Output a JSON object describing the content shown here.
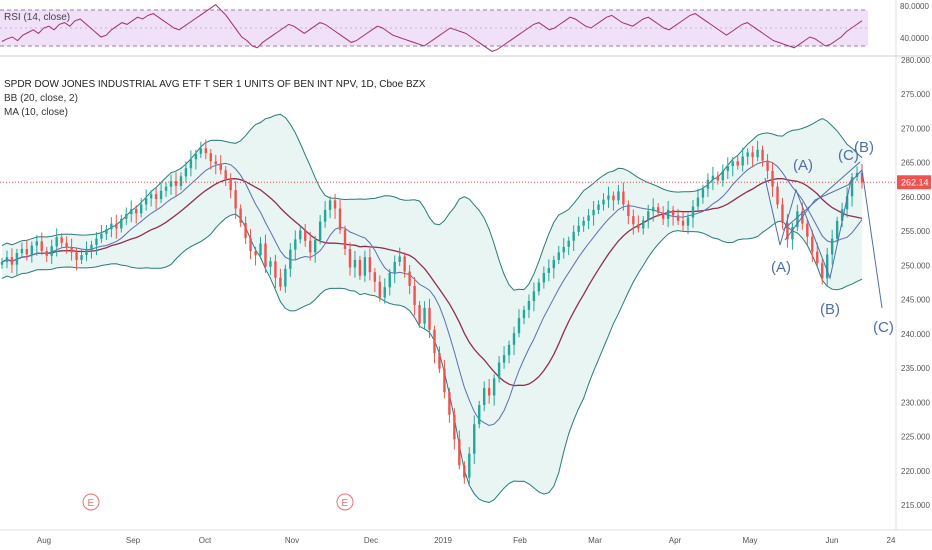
{
  "rsi": {
    "label": "RSI (14, close)",
    "ticks": [
      "80.0000",
      "40.0000"
    ],
    "upper": 80,
    "lower": 40,
    "mid": 60,
    "values": [
      45,
      48,
      50,
      46,
      52,
      55,
      58,
      54,
      60,
      62,
      58,
      64,
      66,
      62,
      68,
      70,
      65,
      60,
      55,
      50,
      52,
      58,
      62,
      66,
      64,
      68,
      72,
      70,
      74,
      76,
      72,
      68,
      64,
      60,
      58,
      62,
      66,
      70,
      74,
      78,
      82,
      86,
      80,
      74,
      66,
      58,
      50,
      46,
      40,
      38,
      44,
      48,
      52,
      56,
      60,
      64,
      62,
      58,
      54,
      58,
      62,
      66,
      64,
      60,
      56,
      52,
      48,
      44,
      46,
      50,
      54,
      58,
      62,
      60,
      56,
      52,
      50,
      48,
      46,
      44,
      42,
      40,
      44,
      48,
      52,
      56,
      60,
      58,
      56,
      54,
      50,
      46,
      42,
      38,
      34,
      36,
      40,
      44,
      48,
      52,
      56,
      60,
      64,
      66,
      62,
      58,
      60,
      64,
      68,
      72,
      70,
      66,
      62,
      60,
      64,
      68,
      72,
      74,
      70,
      66,
      64,
      62,
      66,
      70,
      72,
      68,
      64,
      60,
      58,
      62,
      66,
      70,
      74,
      76,
      72,
      68,
      64,
      60,
      56,
      52,
      56,
      60,
      64,
      66,
      62,
      58,
      54,
      50,
      46,
      44,
      42,
      40,
      38,
      42,
      46,
      50,
      48,
      44,
      40,
      42,
      46,
      50,
      56,
      60,
      64,
      68
    ],
    "colors": {
      "line": "#a0306e",
      "band_fill": "#f0e0f8",
      "band_line": "#9b7bb5"
    }
  },
  "main": {
    "title": "SPDR DOW JONES INDUSTRIAL AVG ETF T SER 1 UNITS OF BEN INT NPV, 1D, Cboe BZX",
    "indicators": [
      "BB (20, close, 2)",
      "MA (10, close)"
    ],
    "price_ticks": [
      "280.000",
      "275.000",
      "270.000",
      "265.000",
      "260.000",
      "255.000",
      "250.000",
      "245.000",
      "240.000",
      "235.000",
      "230.000",
      "225.000",
      "220.000",
      "215.000"
    ],
    "last_price": "262.14",
    "x_ticks": [
      "Aug",
      "Sep",
      "Oct",
      "Nov",
      "Dec",
      "2019",
      "Feb",
      "Mar",
      "Apr",
      "May",
      "Jun",
      "24"
    ],
    "events": [
      "E",
      "E"
    ],
    "wave_labels": [
      "(A)",
      "(B)",
      "(C)",
      "(A)",
      "(B)",
      "(C)"
    ],
    "colors": {
      "up": "#26a69a",
      "down": "#ef5350",
      "ma": "#5b6fb0",
      "bb_basis": "#8e2f50",
      "bb_band": "#2a7a7a",
      "bb_fill": "#e8f5f3",
      "price_line": "#ef5350",
      "price_badge": "#ef5350",
      "wave": "#4e6fa8",
      "event": "#e57373"
    }
  },
  "chart_data": {
    "type": "candlestick",
    "title": "SPDR DOW JONES INDUSTRIAL AVG ETF T SER 1 UNITS OF BEN INT NPV, 1D, Cboe BZX",
    "ylim": [
      212,
      282
    ],
    "last_price": 262.14,
    "x_ticks": [
      "Aug",
      "Sep",
      "Oct",
      "Nov",
      "Dec",
      "2019",
      "Feb",
      "Mar",
      "Apr",
      "May",
      "Jun",
      "24"
    ],
    "close": [
      250.5,
      251.2,
      250.1,
      251.8,
      252.4,
      251.6,
      252.9,
      253.5,
      252.1,
      251.4,
      252.8,
      254.1,
      253.3,
      252.6,
      251.9,
      250.8,
      251.5,
      252.2,
      253.0,
      253.9,
      254.6,
      255.3,
      256.1,
      255.4,
      256.8,
      257.5,
      258.2,
      257.6,
      258.9,
      259.8,
      260.4,
      259.7,
      260.9,
      261.5,
      262.3,
      261.6,
      263.0,
      264.2,
      265.5,
      266.3,
      267.1,
      266.4,
      265.2,
      264.8,
      263.9,
      262.5,
      261.0,
      258.3,
      256.2,
      254.0,
      252.1,
      251.5,
      253.2,
      249.8,
      250.6,
      248.2,
      246.9,
      249.5,
      252.3,
      253.8,
      255.1,
      253.6,
      251.9,
      253.7,
      256.4,
      258.1,
      259.5,
      258.3,
      255.2,
      252.4,
      249.7,
      250.8,
      248.5,
      251.2,
      249.0,
      247.6,
      245.3,
      246.8,
      248.9,
      250.5,
      251.3,
      249.1,
      247.0,
      244.2,
      241.5,
      243.8,
      240.6,
      237.2,
      234.9,
      231.5,
      228.2,
      224.6,
      220.8,
      219.0,
      222.5,
      226.8,
      229.6,
      232.1,
      231.0,
      233.5,
      235.8,
      236.9,
      238.4,
      240.1,
      242.3,
      243.5,
      244.8,
      246.2,
      247.5,
      248.9,
      249.6,
      250.8,
      251.9,
      252.7,
      253.6,
      254.9,
      255.8,
      256.5,
      257.3,
      258.1,
      258.9,
      259.6,
      260.2,
      259.5,
      260.8,
      258.9,
      257.2,
      256.0,
      255.4,
      256.6,
      257.9,
      258.5,
      257.7,
      256.8,
      258.1,
      257.3,
      256.5,
      255.8,
      257.0,
      258.6,
      259.9,
      261.2,
      262.5,
      263.1,
      262.4,
      263.8,
      264.5,
      265.2,
      264.6,
      265.9,
      266.5,
      265.8,
      266.9,
      265.3,
      263.8,
      261.5,
      258.9,
      256.2,
      253.8,
      255.6,
      257.9,
      256.1,
      254.2,
      252.0,
      250.3,
      248.1,
      251.6,
      253.9,
      256.5,
      258.2,
      260.1,
      262.9,
      263.5,
      262.1
    ],
    "indicators": [
      "BB (20, close, 2)",
      "MA (10, close)"
    ],
    "annotations": [
      "(A)",
      "(B)",
      "(C)",
      "(A)",
      "(B)",
      "(C)"
    ]
  }
}
